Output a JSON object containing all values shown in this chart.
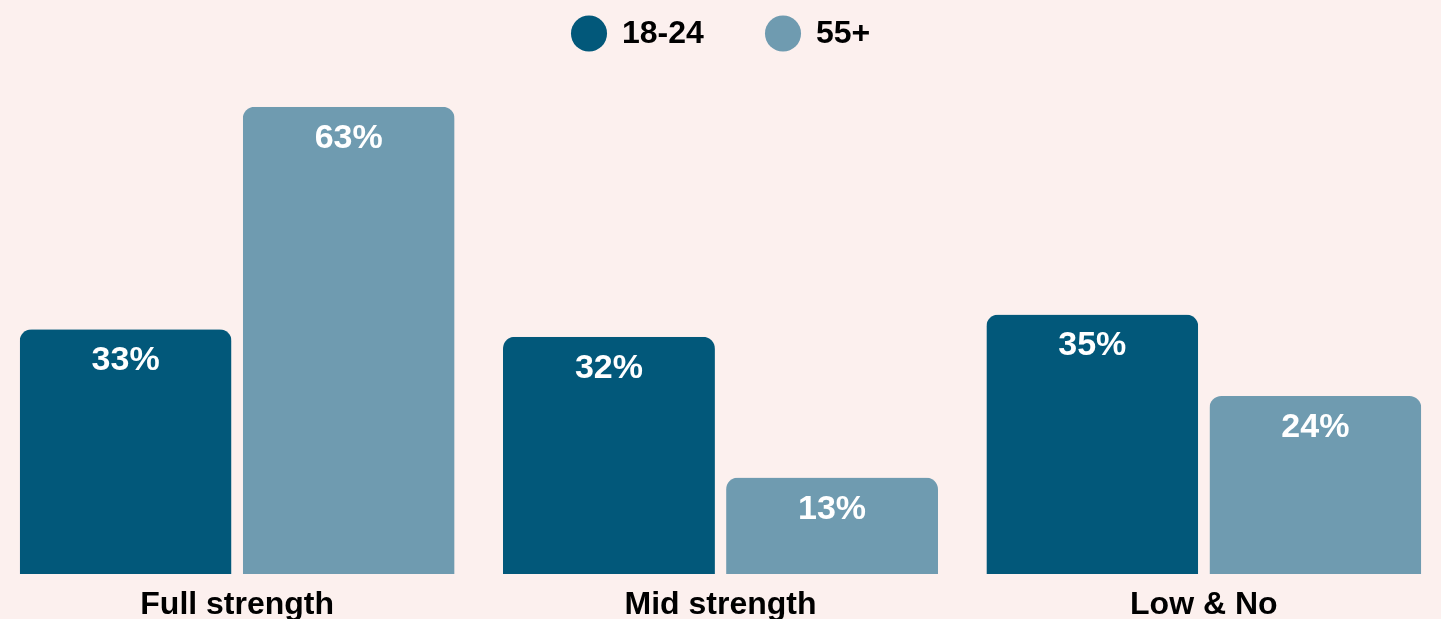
{
  "chart_data": {
    "type": "bar",
    "categories": [
      "Full strength",
      "Mid strength",
      "Low & No"
    ],
    "series": [
      {
        "name": "18-24",
        "color": "#02587a",
        "values": [
          33,
          32,
          35
        ],
        "value_labels": [
          "33%",
          "32%",
          "35%"
        ]
      },
      {
        "name": "55+",
        "color": "#6f9bb0",
        "values": [
          63,
          13,
          24
        ],
        "value_labels": [
          "63%",
          "13%",
          "24%"
        ]
      }
    ],
    "legend": "top"
  }
}
